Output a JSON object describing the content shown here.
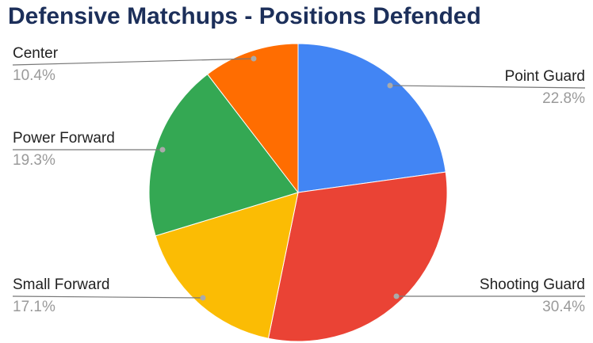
{
  "chart_data": {
    "type": "pie",
    "title": "Defensive Matchups - Positions Defended",
    "categories": [
      "Point Guard",
      "Shooting Guard",
      "Small Forward",
      "Power Forward",
      "Center"
    ],
    "values": [
      22.8,
      30.4,
      17.1,
      19.3,
      10.4
    ],
    "value_labels": [
      "22.8%",
      "30.4%",
      "17.1%",
      "19.3%",
      "10.4%"
    ],
    "colors": [
      "#4285f4",
      "#ea4335",
      "#fbbc04",
      "#34a853",
      "#ff6d01"
    ]
  }
}
